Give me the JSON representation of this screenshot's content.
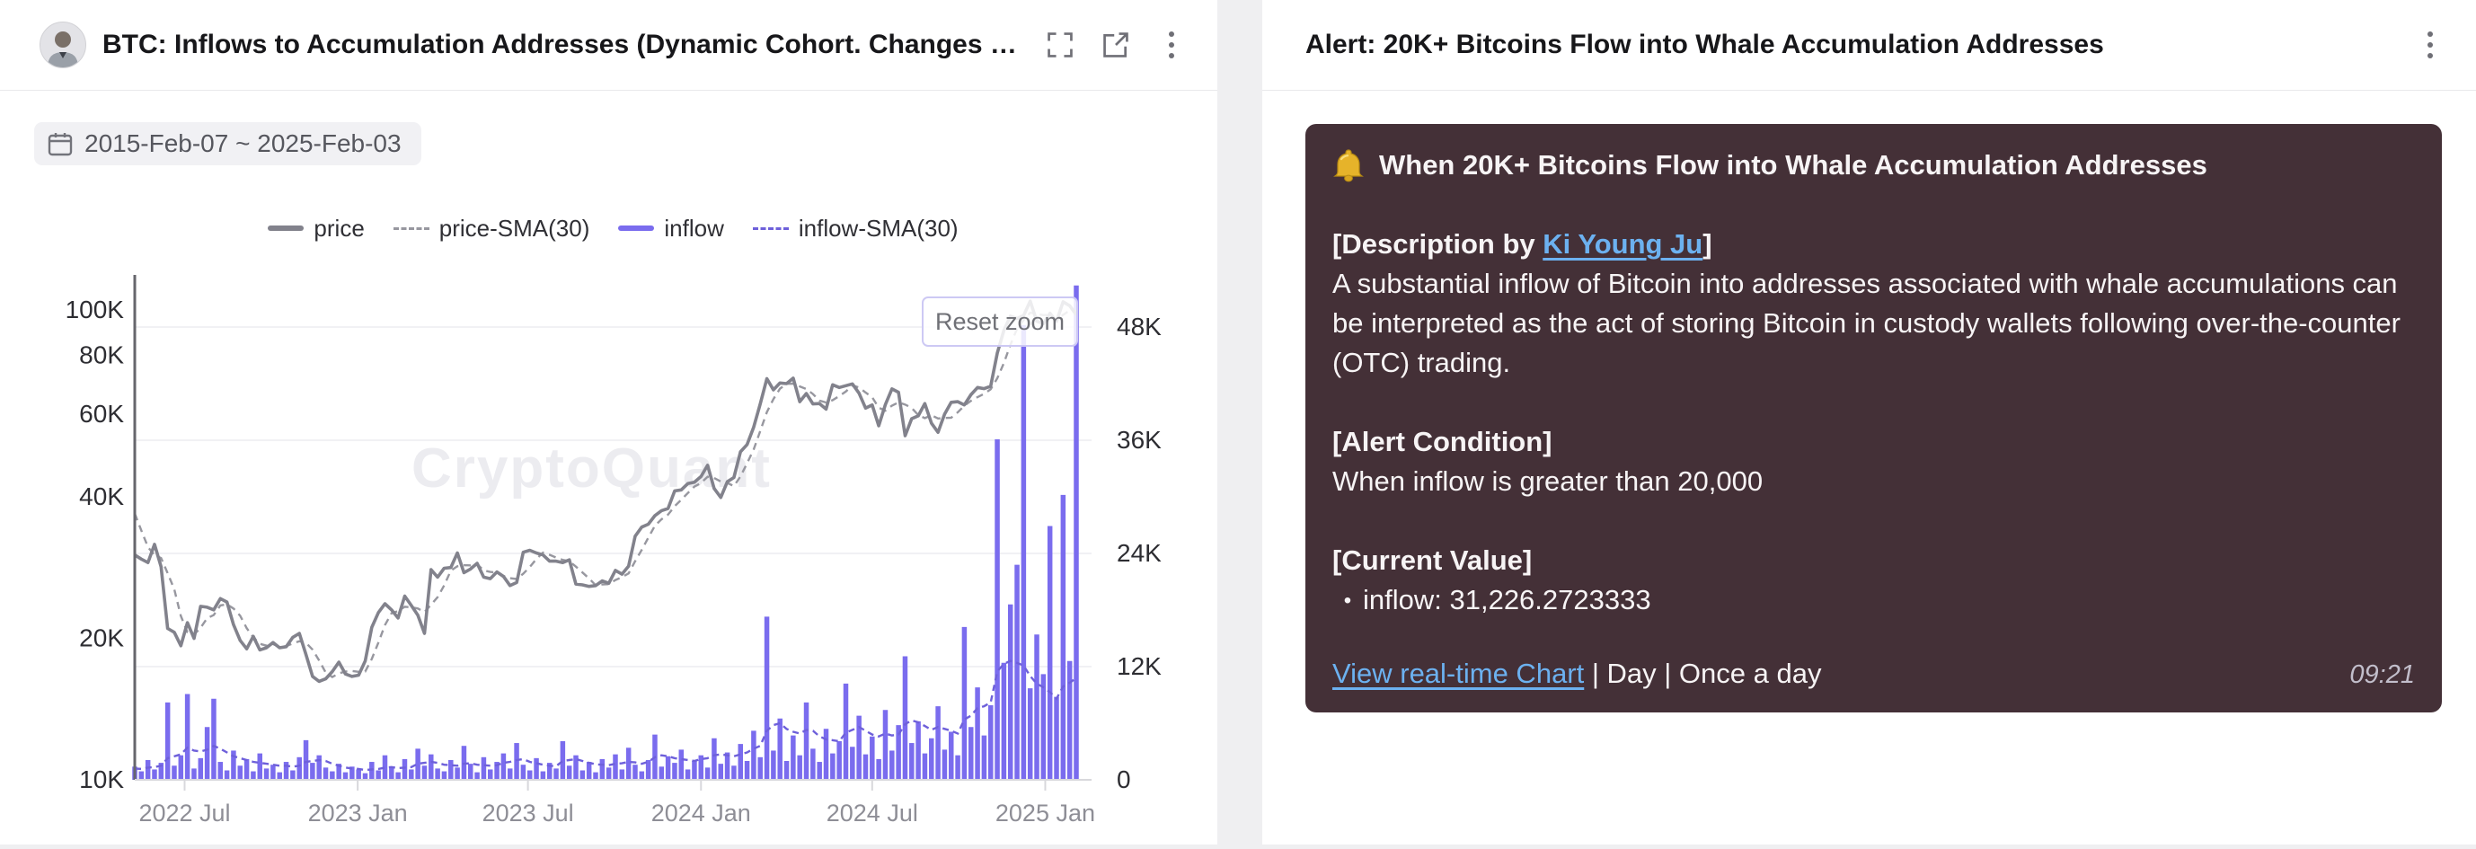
{
  "left_panel": {
    "title": "BTC: Inflows to Accumulation Addresses (Dynamic Cohort. Changes …",
    "date_range": "2015-Feb-07 ~ 2025-Feb-03",
    "reset_zoom_label": "Reset zoom",
    "watermark": "CryptoQuant"
  },
  "right_panel": {
    "title": "Alert: 20K+ Bitcoins Flow into Whale Accumulation Addresses",
    "alert": {
      "title": "When 20K+ Bitcoins Flow into Whale Accumulation Addresses",
      "bell_icon": "bell",
      "description_label_prefix": "[Description by ",
      "description_author": "Ki Young Ju",
      "description_label_suffix": "]",
      "description_body": "A substantial inflow of Bitcoin into addresses associated with whale accumulations can be interpreted as the act of storing Bitcoin in custody wallets following over-the-counter (OTC) trading.",
      "condition_label": "[Alert Condition]",
      "condition_text": "When inflow is greater than 20,000",
      "current_value_label": "[Current Value]",
      "current_value_bullet": "•",
      "current_value_text": "inflow: 31,226.2723333",
      "footer_link": "View real-time Chart",
      "footer_meta": " | Day | Once a day",
      "timestamp": "09:21",
      "background_color": "#443037",
      "link_color": "#6cb1f0"
    }
  },
  "chart_data": {
    "type": "mixed-line-bar",
    "description": "BTC price (log scale, left axis, USD) with 30-day SMA, and BTC inflow to accumulation addresses (linear right axis, BTC) with 30-day SMA. Weekly samples 2022-05-09 to 2025-02-03.",
    "legend": [
      {
        "label": "price",
        "style": "solid",
        "color": "#82828c"
      },
      {
        "label": "price-SMA(30)",
        "style": "dashed",
        "color": "#97979f"
      },
      {
        "label": "inflow",
        "style": "solid",
        "color": "#7a6cee"
      },
      {
        "label": "inflow-SMA(30)",
        "style": "dashed",
        "color": "#6e60da"
      }
    ],
    "x_axis": {
      "start": "2022-05-09",
      "interval_days": 7,
      "total_days": 1001,
      "ticks": [
        {
          "label": "2022 Jul",
          "day": 53
        },
        {
          "label": "2023 Jan",
          "day": 237
        },
        {
          "label": "2023 Jul",
          "day": 418
        },
        {
          "label": "2024 Jan",
          "day": 602
        },
        {
          "label": "2024 Jul",
          "day": 784
        },
        {
          "label": "2025 Jan",
          "day": 968
        }
      ]
    },
    "y_axis_left": {
      "scale": "log",
      "unit": "USD",
      "ticks": [
        {
          "value": 10000,
          "label": "10K"
        },
        {
          "value": 20000,
          "label": "20K"
        },
        {
          "value": 40000,
          "label": "40K"
        },
        {
          "value": 60000,
          "label": "60K"
        },
        {
          "value": 80000,
          "label": "80K"
        },
        {
          "value": 100000,
          "label": "100K"
        }
      ]
    },
    "y_axis_right": {
      "scale": "linear",
      "unit": "BTC",
      "min": 0,
      "max": 48000,
      "ticks": [
        {
          "value": 0,
          "label": "0"
        },
        {
          "value": 12000,
          "label": "12K"
        },
        {
          "value": 24000,
          "label": "24K"
        },
        {
          "value": 36000,
          "label": "36K"
        },
        {
          "value": 48000,
          "label": "48K"
        }
      ]
    },
    "series": {
      "price": {
        "name": "price",
        "axis": "left",
        "values": [
          30100,
          29500,
          29000,
          31700,
          28400,
          21000,
          20600,
          19300,
          21600,
          20000,
          23400,
          23300,
          23000,
          24300,
          23900,
          21400,
          19800,
          19000,
          20200,
          18900,
          19100,
          19600,
          19100,
          19200,
          20100,
          20500,
          18500,
          16600,
          16200,
          16400,
          17000,
          17800,
          16800,
          16600,
          16700,
          17900,
          21100,
          22700,
          23700,
          23000,
          22100,
          24600,
          23500,
          22400,
          20500,
          28000,
          27000,
          28200,
          28300,
          30400,
          27600,
          28100,
          28900,
          27000,
          26800,
          27700,
          27100,
          25900,
          26300,
          30500,
          30800,
          30400,
          30100,
          29200,
          29200,
          29000,
          29400,
          26100,
          26000,
          25800,
          25900,
          26500,
          26200,
          27900,
          27400,
          28500,
          33000,
          34500,
          35000,
          36500,
          37400,
          37800,
          41200,
          41400,
          42700,
          43000,
          44200,
          46700,
          41700,
          39900,
          43100,
          44000,
          49900,
          51700,
          56300,
          63100,
          71400,
          67600,
          69900,
          69700,
          71600,
          63800,
          66400,
          63100,
          63200,
          61500,
          69300,
          68400,
          69000,
          69600,
          66500,
          61800,
          62800,
          56700,
          62900,
          67900,
          66800,
          54000,
          58700,
          59500,
          63200,
          57400,
          54900,
          60000,
          63600,
          63800,
          62800,
          66000,
          68400,
          68000,
          68800,
          81000,
          90500,
          97000,
          95900,
          97300,
          104400,
          94700,
          93500,
          98400,
          94500,
          104100,
          102100,
          97700
        ]
      },
      "price_sma_seed": [
        41200,
        39700,
        36500
      ],
      "inflow": {
        "name": "inflow",
        "axis": "right",
        "values": [
          1400,
          900,
          2100,
          1100,
          1800,
          8200,
          1500,
          2600,
          9100,
          1200,
          2300,
          5600,
          8600,
          1900,
          1000,
          3100,
          1500,
          2200,
          900,
          2800,
          1200,
          1600,
          800,
          1900,
          1000,
          2400,
          4200,
          1800,
          2600,
          1300,
          900,
          1700,
          800,
          1400,
          1100,
          700,
          1900,
          1000,
          2600,
          1400,
          800,
          2200,
          1100,
          3300,
          1500,
          2700,
          1200,
          900,
          2100,
          1300,
          3600,
          1700,
          800,
          2400,
          1100,
          1900,
          2800,
          1200,
          3900,
          1600,
          1000,
          2300,
          900,
          1800,
          1200,
          4100,
          1500,
          2600,
          1000,
          1900,
          800,
          2200,
          1300,
          2700,
          1100,
          3400,
          1600,
          900,
          2100,
          4800,
          1400,
          2500,
          1800,
          3200,
          1100,
          2000,
          2600,
          1300,
          4400,
          1700,
          2900,
          1500,
          3800,
          2000,
          5200,
          2400,
          17300,
          3100,
          6500,
          2000,
          4700,
          2600,
          8200,
          3300,
          1900,
          5400,
          2800,
          4100,
          10200,
          3500,
          6800,
          2700,
          4600,
          2200,
          7400,
          3100,
          5800,
          13100,
          3900,
          6200,
          2800,
          4400,
          7800,
          3200,
          5100,
          2600,
          16200,
          5600,
          9800,
          4700,
          7900,
          36100,
          12400,
          18600,
          22800,
          48200,
          9700,
          15400,
          11200,
          26900,
          8800,
          30200,
          12600,
          52400
        ]
      },
      "inflow_sma": {
        "name": "inflow-SMA(30)",
        "axis": "right",
        "values": [
          1200,
          1150,
          1300,
          1350,
          1500,
          2300,
          2500,
          2700,
          3400,
          3100,
          3000,
          3200,
          3600,
          3300,
          2900,
          2500,
          2300,
          2100,
          1900,
          1800,
          1700,
          1600,
          1500,
          1500,
          1400,
          1500,
          1900,
          2000,
          2100,
          2000,
          1700,
          1500,
          1300,
          1200,
          1150,
          1050,
          1100,
          1150,
          1300,
          1350,
          1250,
          1300,
          1350,
          1700,
          1800,
          1900,
          1800,
          1600,
          1550,
          1500,
          1700,
          1750,
          1600,
          1550,
          1500,
          1550,
          1800,
          1900,
          2100,
          2200,
          1900,
          1750,
          1600,
          1500,
          1450,
          2000,
          2100,
          2200,
          2000,
          1800,
          1650,
          1600,
          1550,
          1700,
          1750,
          1900,
          1850,
          1700,
          1900,
          2400,
          2600,
          2500,
          2300,
          2200,
          2100,
          2000,
          2200,
          2300,
          2600,
          2700,
          2600,
          2500,
          2700,
          2900,
          3300,
          3600,
          5200,
          5800,
          6000,
          5400,
          5100,
          4900,
          5300,
          5200,
          4600,
          4300,
          4200,
          4100,
          5000,
          5300,
          5600,
          5200,
          4800,
          4600,
          4900,
          4700,
          4800,
          5900,
          6300,
          6100,
          5700,
          5300,
          5600,
          5400,
          5200,
          4900,
          6400,
          6800,
          7600,
          7800,
          8200,
          11500,
          12300,
          12600,
          12400,
          12100,
          11000,
          10200,
          9800,
          9300,
          8600,
          9900,
          10300,
          10800
        ]
      }
    },
    "colors": {
      "price": "#82828c",
      "price_sma": "#97979f",
      "inflow": "#7a6cee",
      "inflow_sma": "#6e60da",
      "grid": "#f1f1f4",
      "axis_left_line": "#66666c",
      "axis_bottom_line": "#d8d8dc",
      "tick_label_dark": "#2d2d32",
      "tick_label_light": "#8e8e96"
    }
  }
}
